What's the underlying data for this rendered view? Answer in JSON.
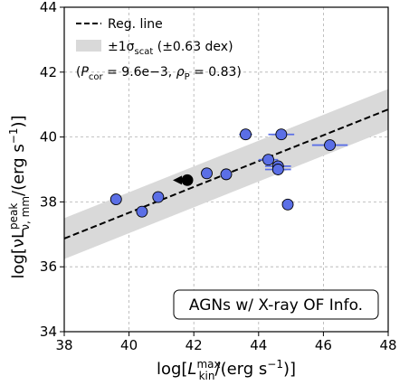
{
  "chart_data": {
    "type": "scatter",
    "xlim": [
      38,
      48
    ],
    "ylim": [
      34,
      44
    ],
    "x_ticks": [
      "38",
      "40",
      "42",
      "44",
      "46",
      "48"
    ],
    "y_ticks": [
      "34",
      "36",
      "38",
      "40",
      "42",
      "44"
    ],
    "xlabel": {
      "pre": "log[",
      "sym": "L",
      "sup": "max",
      "sub": "kin",
      "post": "/(erg s",
      "exp": "−1",
      "end": ")]"
    },
    "ylabel": {
      "pre": "log[νL",
      "sup": "peak",
      "sub": "ν, mm",
      "post": "/(erg s",
      "exp": "−1",
      "end": ")]"
    },
    "grid": true,
    "regression": {
      "x": [
        38,
        48
      ],
      "y": [
        36.87,
        40.85
      ]
    },
    "scatter_band_dex": 0.63,
    "legend": {
      "placement": "top-left",
      "line_label": "Reg. line",
      "band_label": {
        "pm": "±1σ",
        "sub": "scat",
        "rest": " (±0.63 dex)"
      }
    },
    "stats": {
      "p_sym": "P",
      "p_sub": "cor",
      "p_val": " = 9.6e−3, ",
      "rho_sym": "ρ",
      "rho_sub": "P",
      "rho_val": " = 0.83)",
      "open": "("
    },
    "annotation": "AGNs w/ X-ray OF Info.",
    "colors": {
      "points": "#5b6fe6",
      "edge": "#000000",
      "band": "#d9d9d9",
      "highlight": "#000000"
    },
    "points": [
      {
        "x": 39.6,
        "y": 38.08,
        "xerr": 0
      },
      {
        "x": 40.4,
        "y": 37.7,
        "xerr": 0
      },
      {
        "x": 40.9,
        "y": 38.15,
        "xerr": 0
      },
      {
        "x": 42.4,
        "y": 38.88,
        "xerr": 0
      },
      {
        "x": 43.0,
        "y": 38.85,
        "xerr": 0
      },
      {
        "x": 43.6,
        "y": 40.08,
        "xerr": 0.2
      },
      {
        "x": 44.3,
        "y": 39.3,
        "xerr": 0.3
      },
      {
        "x": 44.6,
        "y": 39.1,
        "xerr": 0.4
      },
      {
        "x": 44.6,
        "y": 39.0,
        "xerr": 0.4
      },
      {
        "x": 44.7,
        "y": 40.08,
        "xerr": 0.4
      },
      {
        "x": 44.9,
        "y": 37.92,
        "xerr": 0
      },
      {
        "x": 46.2,
        "y": 39.75,
        "xerr": 0.55
      }
    ],
    "upper_limit_points": [
      {
        "x": 41.8,
        "y": 38.67,
        "color": "#000000"
      }
    ]
  }
}
